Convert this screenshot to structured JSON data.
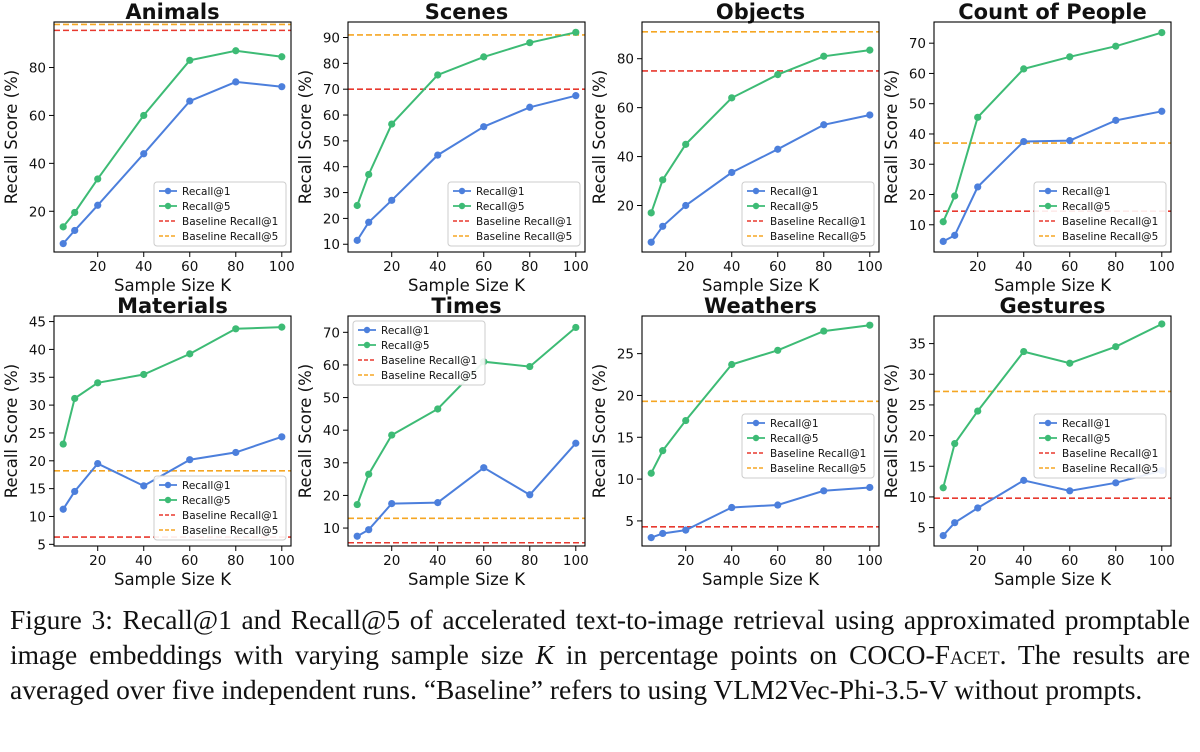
{
  "chart_data": [
    {
      "type": "line",
      "title": "Animals",
      "xlabel": "Sample Size K",
      "ylabel": "Recall Score (%)",
      "xlim": [
        1,
        104
      ],
      "ylim": [
        3,
        99
      ],
      "xticks": [
        20,
        40,
        60,
        80,
        100
      ],
      "yticks": [
        20,
        40,
        60,
        80
      ],
      "x": [
        5,
        10,
        20,
        40,
        60,
        80,
        100
      ],
      "series": [
        {
          "name": "Recall@1",
          "color": "#4c7fdc",
          "values": [
            6.5,
            12,
            22.5,
            44,
            66,
            74,
            72
          ]
        },
        {
          "name": "Recall@5",
          "color": "#3dbb75",
          "values": [
            13.5,
            19.5,
            33.5,
            60,
            83,
            87,
            84.5
          ]
        }
      ],
      "baselines": [
        {
          "name": "Baseline Recall@1",
          "color": "#e8392f",
          "value": 95.5
        },
        {
          "name": "Baseline Recall@5",
          "color": "#f5a623",
          "value": 98
        }
      ],
      "legend_position": "lower-right"
    },
    {
      "type": "line",
      "title": "Scenes",
      "xlabel": "Sample Size K",
      "ylabel": "Recall Score (%)",
      "xlim": [
        1,
        104
      ],
      "ylim": [
        7,
        96
      ],
      "xticks": [
        20,
        40,
        60,
        80,
        100
      ],
      "yticks": [
        10,
        20,
        30,
        40,
        50,
        60,
        70,
        80,
        90
      ],
      "x": [
        5,
        10,
        20,
        40,
        60,
        80,
        100
      ],
      "series": [
        {
          "name": "Recall@1",
          "color": "#4c7fdc",
          "values": [
            11.5,
            18.5,
            27,
            44.5,
            55.5,
            63,
            67.5
          ]
        },
        {
          "name": "Recall@5",
          "color": "#3dbb75",
          "values": [
            25,
            37,
            56.5,
            75.5,
            82.5,
            88,
            92
          ]
        }
      ],
      "baselines": [
        {
          "name": "Baseline Recall@1",
          "color": "#e8392f",
          "value": 70
        },
        {
          "name": "Baseline Recall@5",
          "color": "#f5a623",
          "value": 91
        }
      ],
      "legend_position": "lower-right"
    },
    {
      "type": "line",
      "title": "Objects",
      "xlabel": "Sample Size K",
      "ylabel": "Recall Score (%)",
      "xlim": [
        1,
        104
      ],
      "ylim": [
        1,
        95
      ],
      "xticks": [
        20,
        40,
        60,
        80,
        100
      ],
      "yticks": [
        20,
        40,
        60,
        80
      ],
      "x": [
        5,
        10,
        20,
        40,
        60,
        80,
        100
      ],
      "series": [
        {
          "name": "Recall@1",
          "color": "#4c7fdc",
          "values": [
            5,
            11.5,
            20,
            33.5,
            43,
            53,
            57
          ]
        },
        {
          "name": "Recall@5",
          "color": "#3dbb75",
          "values": [
            17,
            30.5,
            45,
            64,
            73.5,
            81,
            83.5
          ]
        }
      ],
      "baselines": [
        {
          "name": "Baseline Recall@1",
          "color": "#e8392f",
          "value": 75
        },
        {
          "name": "Baseline Recall@5",
          "color": "#f5a623",
          "value": 91
        }
      ],
      "legend_position": "lower-right"
    },
    {
      "type": "line",
      "title": "Count of People",
      "xlabel": "Sample Size K",
      "ylabel": "Recall Score (%)",
      "xlim": [
        1,
        104
      ],
      "ylim": [
        1,
        77
      ],
      "xticks": [
        20,
        40,
        60,
        80,
        100
      ],
      "yticks": [
        10,
        20,
        30,
        40,
        50,
        60,
        70
      ],
      "x": [
        5,
        10,
        20,
        40,
        60,
        80,
        100
      ],
      "series": [
        {
          "name": "Recall@1",
          "color": "#4c7fdc",
          "values": [
            4.5,
            6.5,
            22.5,
            37.5,
            37.8,
            44.5,
            47.5
          ]
        },
        {
          "name": "Recall@5",
          "color": "#3dbb75",
          "values": [
            11,
            19.5,
            45.5,
            61.5,
            65.5,
            69,
            73.5
          ]
        }
      ],
      "baselines": [
        {
          "name": "Baseline Recall@1",
          "color": "#e8392f",
          "value": 14.5
        },
        {
          "name": "Baseline Recall@5",
          "color": "#f5a623",
          "value": 37
        }
      ],
      "legend_position": "lower-right"
    },
    {
      "type": "line",
      "title": "Materials",
      "xlabel": "Sample Size K",
      "ylabel": "Recall Score (%)",
      "xlim": [
        1,
        104
      ],
      "ylim": [
        4.7,
        46
      ],
      "xticks": [
        20,
        40,
        60,
        80,
        100
      ],
      "yticks": [
        5,
        10,
        15,
        20,
        25,
        30,
        35,
        40,
        45
      ],
      "x": [
        5,
        10,
        20,
        40,
        60,
        80,
        100
      ],
      "series": [
        {
          "name": "Recall@1",
          "color": "#4c7fdc",
          "values": [
            11.3,
            14.5,
            19.5,
            15.5,
            20.2,
            21.5,
            24.3
          ]
        },
        {
          "name": "Recall@5",
          "color": "#3dbb75",
          "values": [
            23,
            31.2,
            34,
            35.5,
            39.2,
            43.7,
            44
          ]
        }
      ],
      "baselines": [
        {
          "name": "Baseline Recall@1",
          "color": "#e8392f",
          "value": 6.3
        },
        {
          "name": "Baseline Recall@5",
          "color": "#f5a623",
          "value": 18.2
        }
      ],
      "legend_position": "lower-right"
    },
    {
      "type": "line",
      "title": "Times",
      "xlabel": "Sample Size K",
      "ylabel": "Recall Score (%)",
      "xlim": [
        1,
        104
      ],
      "ylim": [
        4.5,
        75
      ],
      "xticks": [
        20,
        40,
        60,
        80,
        100
      ],
      "yticks": [
        10,
        20,
        30,
        40,
        50,
        60,
        70
      ],
      "x": [
        5,
        10,
        20,
        40,
        60,
        80,
        100
      ],
      "series": [
        {
          "name": "Recall@1",
          "color": "#4c7fdc",
          "values": [
            7.5,
            9.5,
            17.5,
            17.8,
            28.5,
            20.2,
            36
          ]
        },
        {
          "name": "Recall@5",
          "color": "#3dbb75",
          "values": [
            17.2,
            26.5,
            38.5,
            46.5,
            61,
            59.5,
            71.5
          ]
        }
      ],
      "baselines": [
        {
          "name": "Baseline Recall@1",
          "color": "#e8392f",
          "value": 5.5
        },
        {
          "name": "Baseline Recall@5",
          "color": "#f5a623",
          "value": 13
        }
      ],
      "legend_position": "upper-left"
    },
    {
      "type": "line",
      "title": "Weathers",
      "xlabel": "Sample Size K",
      "ylabel": "Recall Score (%)",
      "xlim": [
        1,
        104
      ],
      "ylim": [
        2,
        29.5
      ],
      "xticks": [
        20,
        40,
        60,
        80,
        100
      ],
      "yticks": [
        5,
        10,
        15,
        20,
        25
      ],
      "x": [
        5,
        10,
        20,
        40,
        60,
        80,
        100
      ],
      "series": [
        {
          "name": "Recall@1",
          "color": "#4c7fdc",
          "values": [
            3,
            3.5,
            3.9,
            6.6,
            6.9,
            8.6,
            9
          ]
        },
        {
          "name": "Recall@5",
          "color": "#3dbb75",
          "values": [
            10.7,
            13.4,
            17,
            23.7,
            25.4,
            27.7,
            28.4
          ]
        }
      ],
      "baselines": [
        {
          "name": "Baseline Recall@1",
          "color": "#e8392f",
          "value": 4.3
        },
        {
          "name": "Baseline Recall@5",
          "color": "#f5a623",
          "value": 19.3
        }
      ],
      "legend_position": "center-right"
    },
    {
      "type": "line",
      "title": "Gestures",
      "xlabel": "Sample Size K",
      "ylabel": "Recall Score (%)",
      "xlim": [
        1,
        104
      ],
      "ylim": [
        2,
        39.5
      ],
      "xticks": [
        20,
        40,
        60,
        80,
        100
      ],
      "yticks": [
        5,
        10,
        15,
        20,
        25,
        30,
        35
      ],
      "x": [
        5,
        10,
        20,
        40,
        60,
        80,
        100
      ],
      "series": [
        {
          "name": "Recall@1",
          "color": "#4c7fdc",
          "values": [
            3.7,
            5.8,
            8.2,
            12.7,
            11,
            12.3,
            14.3
          ]
        },
        {
          "name": "Recall@5",
          "color": "#3dbb75",
          "values": [
            11.5,
            18.7,
            24,
            33.7,
            31.8,
            34.5,
            38.2
          ]
        }
      ],
      "baselines": [
        {
          "name": "Baseline Recall@1",
          "color": "#e8392f",
          "value": 9.8
        },
        {
          "name": "Baseline Recall@5",
          "color": "#f5a623",
          "value": 27.2
        }
      ],
      "legend_position": "center-right"
    }
  ],
  "caption": {
    "figure_label": "Figure 3:",
    "text_before_k": "Recall@1 and Recall@5 of accelerated text-to-image retrieval using approximated promptable image embeddings with varying sample size",
    "k_symbol": "K",
    "text_after_k": "in percentage points on",
    "dataset_name": "COCO-Facet",
    "text_end": ". The results are averaged over five independent runs. “Baseline” refers to using VLM2Vec-Phi-3.5-V without prompts."
  }
}
